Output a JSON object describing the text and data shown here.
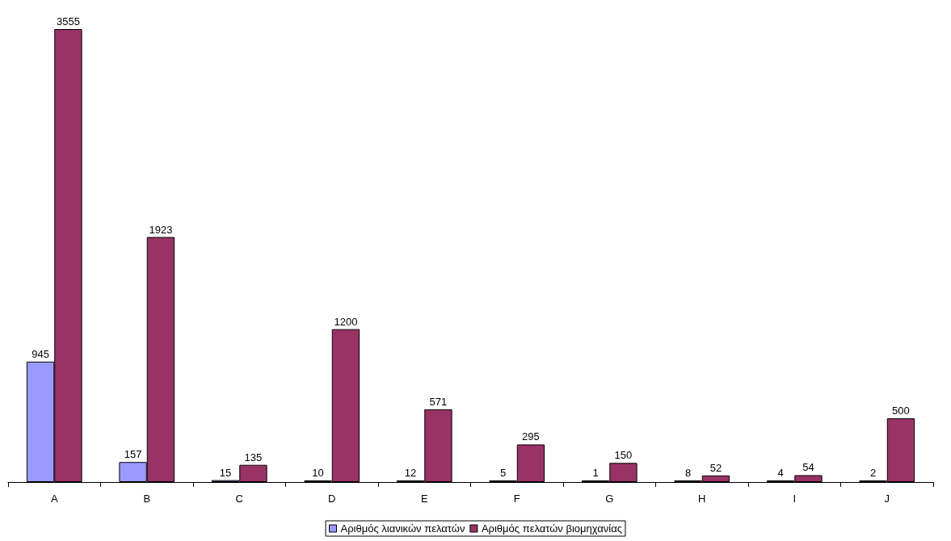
{
  "chart_data": {
    "type": "bar",
    "categories": [
      "A",
      "B",
      "C",
      "D",
      "E",
      "F",
      "G",
      "H",
      "I",
      "J"
    ],
    "series": [
      {
        "name": "Αριθμός λιανικών πελατών",
        "color": "#9999ff",
        "values": [
          945,
          157,
          15,
          10,
          12,
          5,
          1,
          8,
          4,
          2
        ]
      },
      {
        "name": "Αριθμός πελατών βιομηχανίας",
        "color": "#993366",
        "values": [
          3555,
          1923,
          135,
          1200,
          571,
          295,
          150,
          52,
          54,
          500
        ]
      }
    ],
    "data_labels": true,
    "legend": "bottom"
  }
}
